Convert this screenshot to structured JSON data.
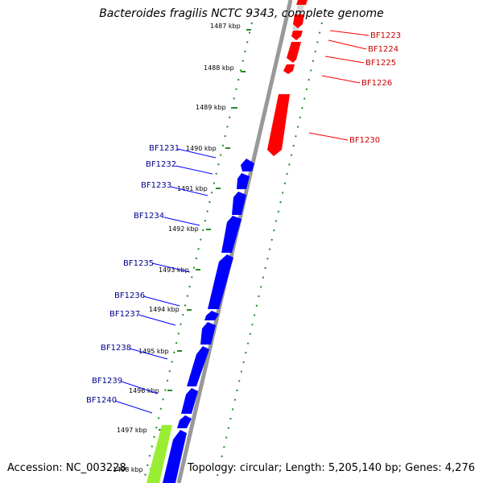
{
  "title": "Bacteroides fragilis NCTC 9343, complete genome",
  "footer": {
    "accession": "Accession: NC_003228",
    "stats": "Topology: circular; Length: 5,205,140 bp; Genes: 4,276"
  },
  "ticks": [
    {
      "label": "1487 kbp"
    },
    {
      "label": "1488 kbp"
    },
    {
      "label": "1489 kbp"
    },
    {
      "label": "1490 kbp"
    },
    {
      "label": "1491 kbp"
    },
    {
      "label": "1492 kbp"
    },
    {
      "label": "1493 kbp"
    },
    {
      "label": "1494 kbp"
    },
    {
      "label": "1495 kbp"
    },
    {
      "label": "1496 kbp"
    },
    {
      "label": "1497 kbp"
    },
    {
      "label": "1498 kbp"
    }
  ],
  "forward_genes": [
    {
      "name": "BF1223"
    },
    {
      "name": "BF1224"
    },
    {
      "name": "BF1225"
    },
    {
      "name": "BF1226"
    },
    {
      "name": "BF1230"
    }
  ],
  "reverse_genes": [
    {
      "name": "BF1231"
    },
    {
      "name": "BF1232"
    },
    {
      "name": "BF1233"
    },
    {
      "name": "BF1234"
    },
    {
      "name": "BF1235"
    },
    {
      "name": "BF1236"
    },
    {
      "name": "BF1237"
    },
    {
      "name": "BF1238"
    },
    {
      "name": "BF1239"
    },
    {
      "name": "BF1240"
    }
  ],
  "colors": {
    "forward": "#ff0000",
    "reverse": "#0000ff",
    "other_feature": "#99ee33",
    "backbone": "#999999",
    "tick": "#228b22",
    "forward_label": "#cc0000",
    "reverse_label": "#00008b"
  }
}
